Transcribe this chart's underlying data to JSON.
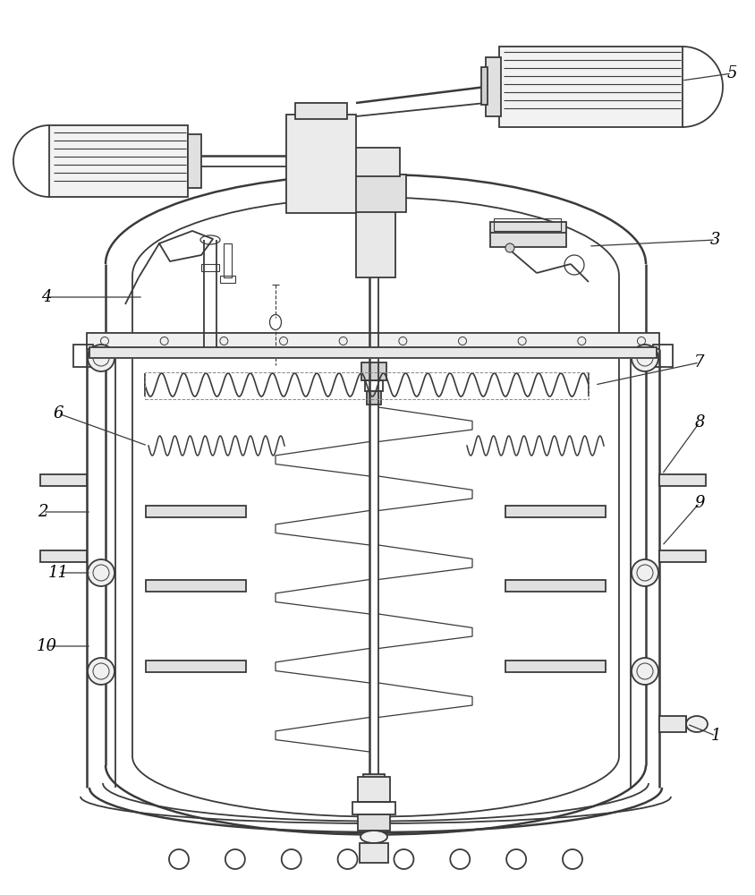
{
  "bg_color": "#ffffff",
  "line_color": "#3a3a3a",
  "line_width": 1.3,
  "thick_line": 1.8,
  "label_fontsize": 13
}
